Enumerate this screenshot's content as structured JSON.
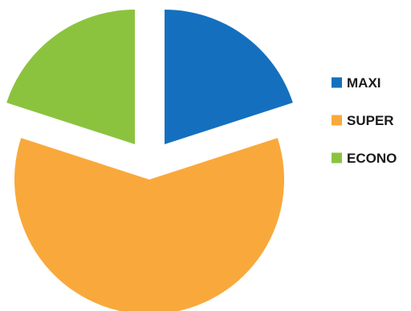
{
  "chart_data": {
    "type": "pie",
    "title": "",
    "exploded": true,
    "legend_position": "right",
    "series": [
      {
        "name": "MAXI",
        "value": 20,
        "color": "#1470BE"
      },
      {
        "name": "SUPER",
        "value": 60,
        "color": "#F9A93B"
      },
      {
        "name": "ECONO",
        "value": 20,
        "color": "#8BC33F"
      }
    ]
  }
}
